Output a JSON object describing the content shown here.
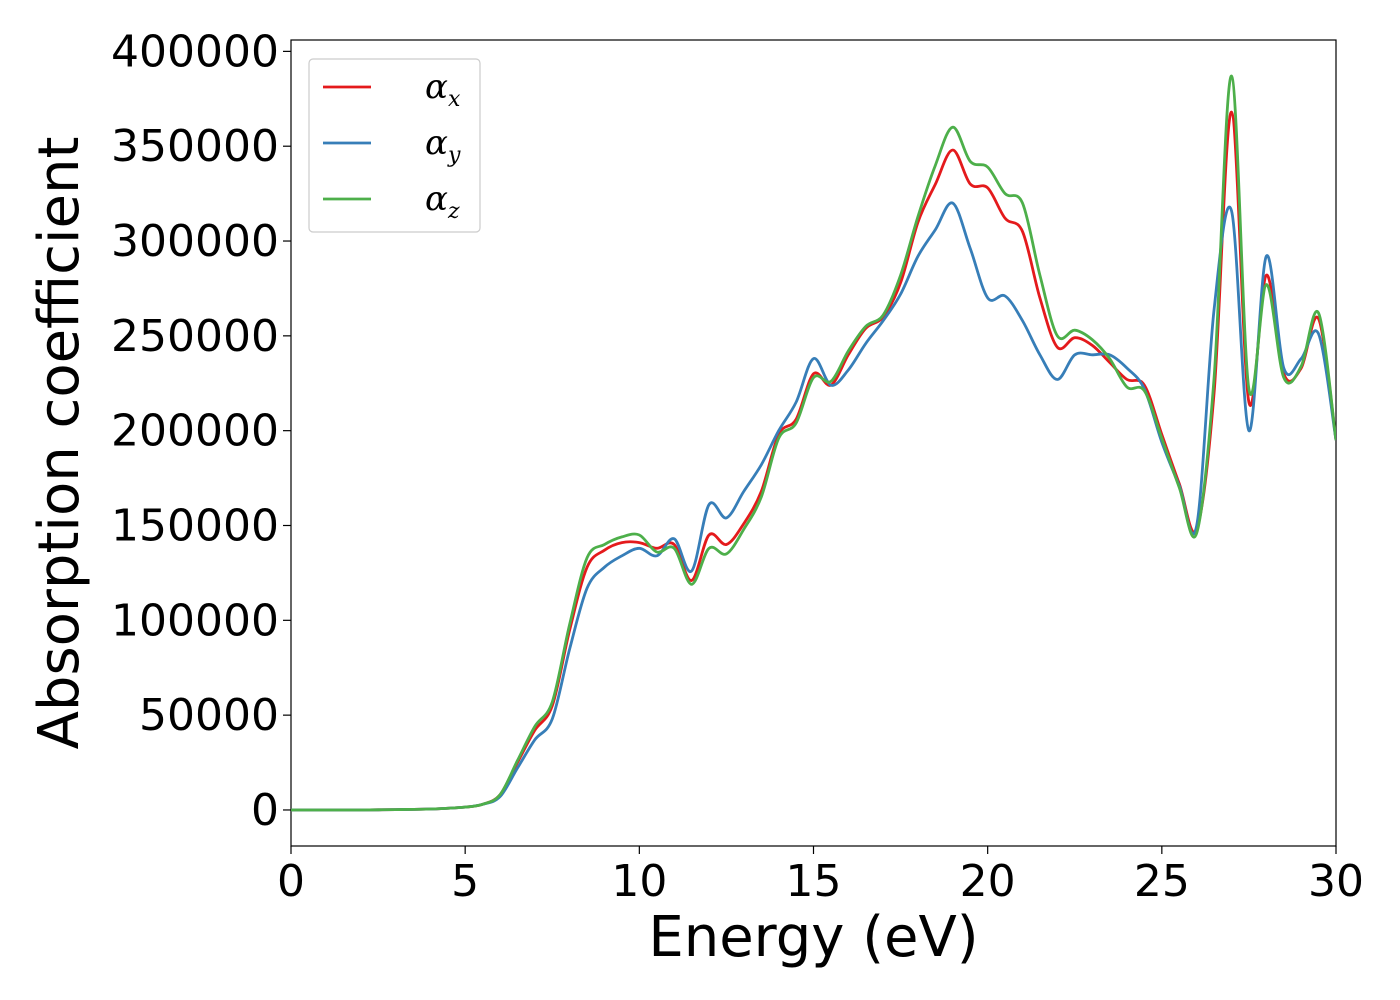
{
  "chart_data": {
    "type": "line",
    "title": "",
    "xlabel": "Energy (eV)",
    "ylabel": "Absorption coefficient",
    "xlim": [
      0,
      30
    ],
    "ylim": [
      -19000,
      406000
    ],
    "xticks": [
      0,
      5,
      10,
      15,
      20,
      25,
      30
    ],
    "xtick_labels": [
      "0",
      "5",
      "10",
      "15",
      "20",
      "25",
      "30"
    ],
    "yticks": [
      0,
      50000,
      100000,
      150000,
      200000,
      250000,
      300000,
      350000,
      400000
    ],
    "ytick_labels": [
      "0",
      "50000",
      "100000",
      "150000",
      "200000",
      "250000",
      "300000",
      "350000",
      "400000"
    ],
    "grid": false,
    "legend_position": "top-left",
    "x": [
      0,
      1,
      2,
      3,
      4,
      5,
      5.5,
      6,
      6.5,
      7,
      7.5,
      8,
      8.5,
      9,
      9.5,
      10,
      10.5,
      11,
      11.5,
      12,
      12.5,
      13,
      13.5,
      14,
      14.5,
      15,
      15.5,
      16,
      16.5,
      17,
      17.5,
      18,
      18.5,
      19,
      19.5,
      20,
      20.5,
      21,
      21.5,
      22,
      22.5,
      23,
      23.5,
      24,
      24.5,
      25,
      25.5,
      26,
      26.5,
      27,
      27.5,
      28,
      28.5,
      29,
      29.5,
      30
    ],
    "series": [
      {
        "name": "α_x",
        "color": "#e41a1c",
        "values": [
          0,
          0,
          0,
          200,
          500,
          1500,
          3000,
          8000,
          25000,
          42000,
          55000,
          95000,
          128000,
          137000,
          141000,
          141000,
          138000,
          140000,
          121000,
          145000,
          140000,
          151000,
          168000,
          198000,
          206000,
          230000,
          224000,
          240000,
          254000,
          260000,
          278000,
          310000,
          330000,
          348000,
          330000,
          328000,
          312000,
          305000,
          270000,
          244000,
          249000,
          245000,
          236000,
          227000,
          224000,
          198000,
          172000,
          148000,
          220000,
          368000,
          215000,
          282000,
          230000,
          233000,
          259000,
          195000
        ]
      },
      {
        "name": "α_y",
        "color": "#377eb8",
        "values": [
          0,
          0,
          0,
          200,
          500,
          1500,
          3000,
          7000,
          22000,
          37000,
          48000,
          85000,
          117000,
          128000,
          134000,
          138000,
          134000,
          143000,
          126000,
          161000,
          154000,
          168000,
          182000,
          200000,
          215000,
          238000,
          224000,
          232000,
          246000,
          258000,
          272000,
          292000,
          306000,
          320000,
          296000,
          270000,
          271000,
          258000,
          240000,
          227000,
          240000,
          240000,
          240000,
          233000,
          222000,
          194000,
          171000,
          150000,
          264000,
          316000,
          200000,
          292000,
          233000,
          238000,
          251000,
          195000
        ]
      },
      {
        "name": "α_z",
        "color": "#4daf4a",
        "values": [
          0,
          0,
          0,
          200,
          500,
          1500,
          3000,
          8000,
          26000,
          44000,
          57000,
          98000,
          133000,
          140000,
          144000,
          145000,
          136000,
          138000,
          119000,
          138000,
          135000,
          148000,
          165000,
          196000,
          204000,
          228000,
          226000,
          242000,
          255000,
          261000,
          282000,
          313000,
          340000,
          360000,
          342000,
          339000,
          325000,
          320000,
          282000,
          250000,
          253000,
          248000,
          238000,
          223000,
          221000,
          196000,
          170000,
          146000,
          228000,
          387000,
          222000,
          277000,
          228000,
          234000,
          262000,
          195000
        ]
      }
    ]
  }
}
